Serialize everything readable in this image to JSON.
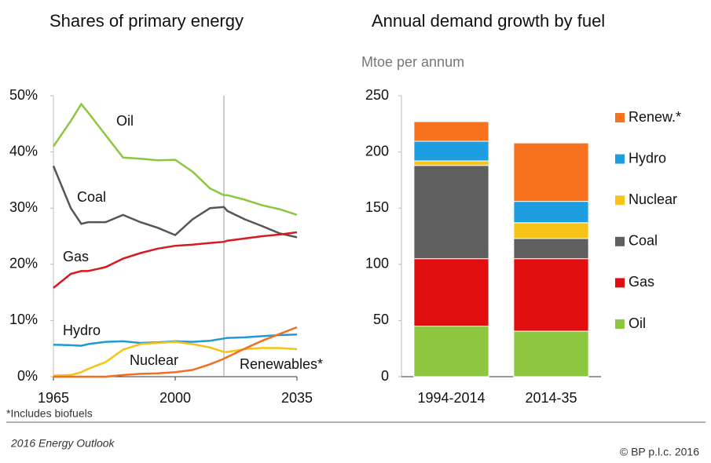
{
  "chart_data": [
    {
      "type": "line",
      "title": "Shares of primary energy",
      "x": [
        1965,
        1970,
        1973,
        1975,
        1980,
        1985,
        1990,
        1995,
        2000,
        2005,
        2010,
        2014,
        2015,
        2020,
        2025,
        2030,
        2035
      ],
      "xlim": [
        1965,
        2035
      ],
      "xticks": [
        1965,
        2000,
        2035
      ],
      "ylim": [
        0,
        50
      ],
      "yticks": [
        {
          "value": 0,
          "label": "0%"
        },
        {
          "value": 10,
          "label": "10%"
        },
        {
          "value": 20,
          "label": "20%"
        },
        {
          "value": 30,
          "label": "30%"
        },
        {
          "value": 40,
          "label": "40%"
        },
        {
          "value": 50,
          "label": "50%"
        }
      ],
      "vline": 2014,
      "grid": false,
      "legend": "inline",
      "series": [
        {
          "name": "Oil",
          "color": "#8dc63f",
          "values": [
            41,
            45.5,
            48.5,
            47,
            43,
            39,
            38.8,
            38.5,
            38.6,
            36.5,
            33.5,
            32.3,
            32.3,
            31.5,
            30.5,
            29.8,
            28.8
          ]
        },
        {
          "name": "Coal",
          "color": "#555555",
          "values": [
            37.5,
            30,
            27.2,
            27.5,
            27.5,
            28.8,
            27.5,
            26.5,
            25.2,
            28,
            30,
            30.2,
            29.5,
            28,
            26.8,
            25.5,
            24.8
          ]
        },
        {
          "name": "Gas",
          "color": "#d71920",
          "values": [
            15.8,
            18.3,
            18.8,
            18.8,
            19.5,
            21,
            22,
            22.8,
            23.3,
            23.5,
            23.8,
            24,
            24.2,
            24.6,
            25,
            25.3,
            25.7
          ]
        },
        {
          "name": "Hydro",
          "color": "#1f9ad6",
          "values": [
            5.7,
            5.6,
            5.5,
            5.8,
            6.2,
            6.3,
            6,
            6.1,
            6.3,
            6.2,
            6.4,
            6.8,
            6.9,
            7,
            7.2,
            7.4,
            7.5
          ]
        },
        {
          "name": "Nuclear",
          "color": "#f6c313",
          "values": [
            0.2,
            0.3,
            0.8,
            1.4,
            2.6,
            4.8,
            5.8,
            6,
            6.2,
            5.8,
            5.2,
            4.4,
            4.4,
            4.9,
            5.1,
            5.1,
            4.9
          ]
        },
        {
          "name": "Renewables*",
          "color": "#f26f22",
          "values": [
            0,
            0,
            0,
            0,
            0,
            0.3,
            0.5,
            0.6,
            0.8,
            1.2,
            2.2,
            3.2,
            3.5,
            5,
            6.4,
            7.6,
            8.8
          ]
        }
      ],
      "note": "*Includes biofuels"
    },
    {
      "type": "bar",
      "stacked": true,
      "title": "Annual demand growth by fuel",
      "ylabel": "Mtoe per annum",
      "categories": [
        "1994-2014",
        "2014-35"
      ],
      "ylim": [
        0,
        250
      ],
      "yticks": [
        0,
        50,
        100,
        150,
        200,
        250
      ],
      "grid": false,
      "legend": "right",
      "series": [
        {
          "name": "Oil",
          "color": "#8dc63f",
          "values": [
            45,
            40.5
          ]
        },
        {
          "name": "Gas",
          "color": "#e00e0e",
          "values": [
            60,
            64.5
          ]
        },
        {
          "name": "Coal",
          "color": "#5f5f5f",
          "values": [
            83,
            18
          ]
        },
        {
          "name": "Nuclear",
          "color": "#f8c319",
          "values": [
            4,
            14
          ]
        },
        {
          "name": "Hydro",
          "color": "#1d9ee0",
          "values": [
            17.5,
            19
          ]
        },
        {
          "name": "Renew.*",
          "color": "#f7721e",
          "values": [
            17.5,
            52
          ]
        }
      ]
    }
  ],
  "footer": {
    "publication": "2016 Energy Outlook",
    "copyright": "© BP p.l.c. 2016"
  }
}
